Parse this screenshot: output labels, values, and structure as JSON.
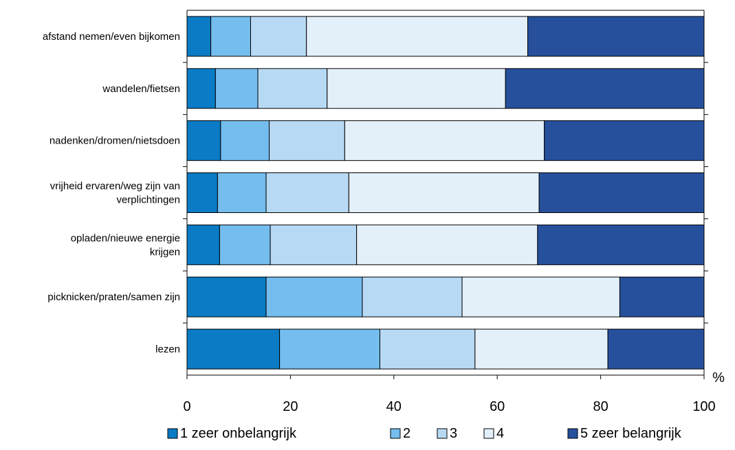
{
  "chart_data": {
    "type": "bar",
    "orientation": "horizontal",
    "stacked": true,
    "categories": [
      [
        "afstand nemen/even bijkomen"
      ],
      [
        "wandelen/fietsen"
      ],
      [
        "nadenken/dromen/nietsdoen"
      ],
      [
        "vrijheid ervaren/weg zijn van",
        "verplichtingen"
      ],
      [
        "opladen/nieuwe energie",
        "krijgen"
      ],
      [
        "picknicken/praten/samen zijn"
      ],
      [
        "lezen"
      ]
    ],
    "series": [
      {
        "name": "1 zeer onbelangrijk",
        "color": "#0a7bc4",
        "values": [
          4.6,
          5.5,
          6.5,
          5.9,
          6.3,
          15.3,
          17.9
        ]
      },
      {
        "name": "2",
        "color": "#74bdee",
        "values": [
          7.7,
          8.2,
          9.4,
          9.4,
          9.8,
          18.6,
          19.4
        ]
      },
      {
        "name": "3",
        "color": "#b7d9f4",
        "values": [
          10.8,
          13.4,
          14.6,
          16.0,
          16.7,
          19.3,
          18.4
        ]
      },
      {
        "name": "4",
        "color": "#e3eff9",
        "values": [
          42.8,
          34.5,
          38.6,
          36.8,
          35.0,
          30.5,
          25.7
        ]
      },
      {
        "name": "5 zeer belangrijk",
        "color": "#26509c",
        "values": [
          34.1,
          38.4,
          30.9,
          31.9,
          32.2,
          16.3,
          18.6
        ]
      }
    ],
    "xlim": [
      0,
      100
    ],
    "xticks": [
      "0",
      "20",
      "40",
      "60",
      "80",
      "100"
    ],
    "xunit": "%",
    "legend_position": "bottom"
  }
}
